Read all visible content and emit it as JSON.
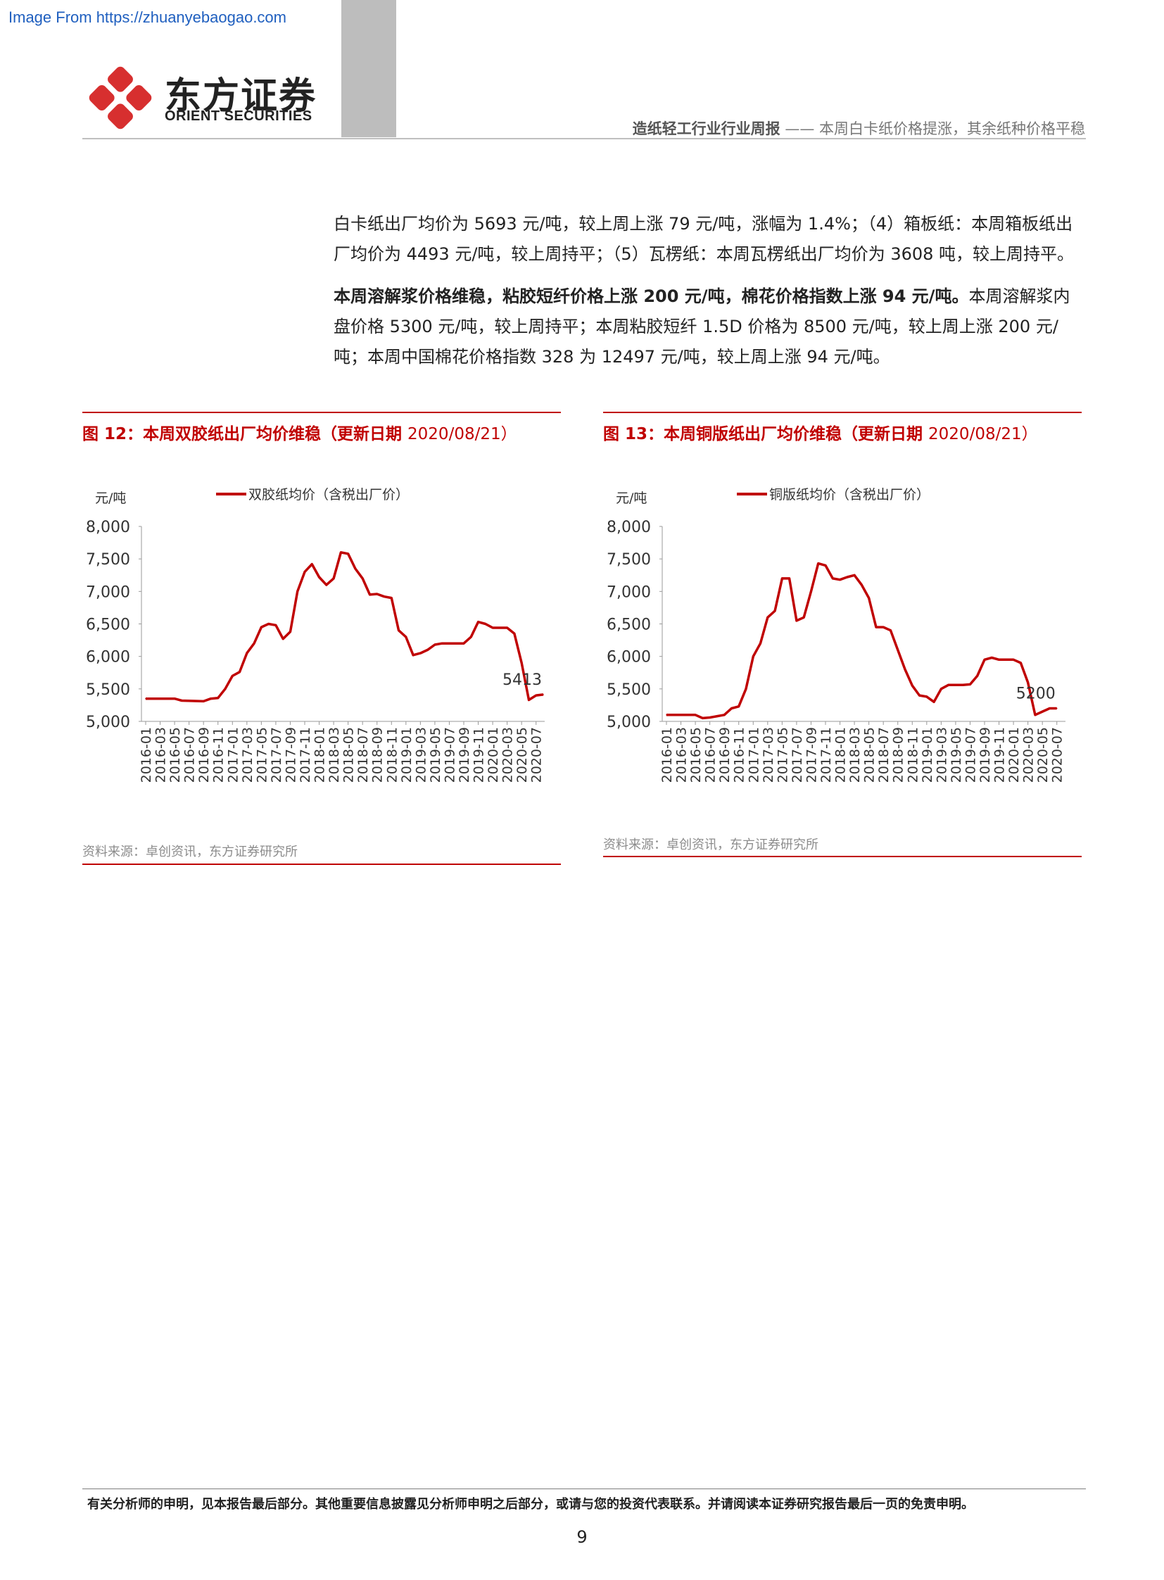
{
  "watermark": "Image From https://zhuanyebaogao.com",
  "logo": {
    "cn": "东方证券",
    "en": "ORIENT SECURITIES",
    "mark_color": "#d72f2f"
  },
  "header": {
    "report_type": "造纸轻工行业行业周报",
    "dash": " —— ",
    "headline": "本周白卡纸价格提涨，其余纸种价格平稳"
  },
  "body": {
    "p1": "白卡纸出厂均价为 5693 元/吨，较上周上涨 79 元/吨，涨幅为 1.4%；（4）箱板纸：本周箱板纸出厂均价为 4493 元/吨，较上周持平；（5）瓦楞纸：本周瓦楞纸出厂均价为 3608 吨，较上周持平。",
    "p2_lead": "本周溶解浆价格维稳，粘胶短纤价格上涨 200 元/吨，棉花价格指数上涨 94 元/吨。",
    "p2_rest": "本周溶解浆内盘价格 5300 元/吨，较上周持平；本周粘胶短纤 1.5D 价格为 8500 元/吨，较上周上涨 200 元/吨；本周中国棉花价格指数 328 为 12497 元/吨，较上周上涨 94 元/吨。"
  },
  "accent_color": "#c00000",
  "figures": [
    {
      "title": "图 12：本周双胶纸出厂均价维稳（更新日期 ",
      "title_tail": "2020/08/21）",
      "source": "资料来源：卓创资讯，东方证券研究所"
    },
    {
      "title": "图 13：本周铜版纸出厂均价维稳（更新日期 ",
      "title_tail": "2020/08/21）",
      "source": "资料来源：卓创资讯，东方证券研究所"
    }
  ],
  "footer": {
    "disclaimer": "有关分析师的申明，见本报告最后部分。其他重要信息披露见分析师申明之后部分，或请与您的投资代表联系。并请阅读本证券研究报告最后一页的免责申明。",
    "page": "9"
  },
  "chart_data": [
    {
      "type": "line",
      "unit_label": "元/吨",
      "ylim": [
        5000,
        8000
      ],
      "y_ticks": [
        "5,000",
        "5,500",
        "6,000",
        "6,500",
        "7,000",
        "7,500",
        "8,000"
      ],
      "x_ticks": [
        "2016-01",
        "2016-03",
        "2016-05",
        "2016-07",
        "2016-09",
        "2016-11",
        "2017-01",
        "2017-03",
        "2017-05",
        "2017-07",
        "2017-09",
        "2017-11",
        "2018-01",
        "2018-03",
        "2018-05",
        "2018-07",
        "2018-09",
        "2018-11",
        "2019-01",
        "2019-03",
        "2019-05",
        "2019-07",
        "2019-09",
        "2019-11",
        "2020-01",
        "2020-03",
        "2020-05",
        "2020-07"
      ],
      "series": [
        {
          "name": "双胶纸均价（含税出厂价）",
          "color": "#c00000",
          "points": [
            [
              "2016-01",
              5350
            ],
            [
              "2016-05",
              5350
            ],
            [
              "2016-06",
              5320
            ],
            [
              "2016-09",
              5310
            ],
            [
              "2016-10",
              5350
            ],
            [
              "2016-11",
              5360
            ],
            [
              "2016-12",
              5500
            ],
            [
              "2017-01",
              5700
            ],
            [
              "2017-02",
              5760
            ],
            [
              "2017-03",
              6050
            ],
            [
              "2017-04",
              6200
            ],
            [
              "2017-05",
              6450
            ],
            [
              "2017-06",
              6500
            ],
            [
              "2017-07",
              6480
            ],
            [
              "2017-08",
              6270
            ],
            [
              "2017-09",
              6380
            ],
            [
              "2017-10",
              7000
            ],
            [
              "2017-11",
              7300
            ],
            [
              "2017-12",
              7420
            ],
            [
              "2018-01",
              7220
            ],
            [
              "2018-02",
              7100
            ],
            [
              "2018-03",
              7200
            ],
            [
              "2018-04",
              7600
            ],
            [
              "2018-05",
              7580
            ],
            [
              "2018-06",
              7350
            ],
            [
              "2018-07",
              7200
            ],
            [
              "2018-08",
              6950
            ],
            [
              "2018-09",
              6960
            ],
            [
              "2018-10",
              6920
            ],
            [
              "2018-11",
              6900
            ],
            [
              "2018-12",
              6400
            ],
            [
              "2019-01",
              6300
            ],
            [
              "2019-02",
              6020
            ],
            [
              "2019-03",
              6050
            ],
            [
              "2019-04",
              6100
            ],
            [
              "2019-05",
              6180
            ],
            [
              "2019-06",
              6200
            ],
            [
              "2019-07",
              6200
            ],
            [
              "2019-08",
              6200
            ],
            [
              "2019-09",
              6200
            ],
            [
              "2019-10",
              6300
            ],
            [
              "2019-11",
              6530
            ],
            [
              "2019-12",
              6500
            ],
            [
              "2020-01",
              6440
            ],
            [
              "2020-02",
              6440
            ],
            [
              "2020-03",
              6440
            ],
            [
              "2020-04",
              6350
            ],
            [
              "2020-05",
              5900
            ],
            [
              "2020-06",
              5330
            ],
            [
              "2020-07",
              5400
            ],
            [
              "2020-08",
              5413
            ]
          ]
        }
      ],
      "annotation": {
        "label": "5413",
        "at": "2020-08",
        "value": 5413
      }
    },
    {
      "type": "line",
      "unit_label": "元/吨",
      "ylim": [
        5000,
        8000
      ],
      "y_ticks": [
        "5,000",
        "5,500",
        "6,000",
        "6,500",
        "7,000",
        "7,500",
        "8,000"
      ],
      "x_ticks": [
        "2016-01",
        "2016-03",
        "2016-05",
        "2016-07",
        "2016-09",
        "2016-11",
        "2017-01",
        "2017-03",
        "2017-05",
        "2017-07",
        "2017-09",
        "2017-11",
        "2018-01",
        "2018-03",
        "2018-05",
        "2018-07",
        "2018-09",
        "2018-11",
        "2019-01",
        "2019-03",
        "2019-05",
        "2019-07",
        "2019-09",
        "2019-11",
        "2020-01",
        "2020-03",
        "2020-05",
        "2020-07"
      ],
      "series": [
        {
          "name": "铜版纸均价（含税出厂价）",
          "color": "#c00000",
          "points": [
            [
              "2016-01",
              5100
            ],
            [
              "2016-05",
              5100
            ],
            [
              "2016-06",
              5050
            ],
            [
              "2016-07",
              5060
            ],
            [
              "2016-09",
              5100
            ],
            [
              "2016-10",
              5200
            ],
            [
              "2016-11",
              5230
            ],
            [
              "2016-12",
              5500
            ],
            [
              "2017-01",
              6000
            ],
            [
              "2017-02",
              6200
            ],
            [
              "2017-03",
              6600
            ],
            [
              "2017-04",
              6700
            ],
            [
              "2017-05",
              7200
            ],
            [
              "2017-06",
              7200
            ],
            [
              "2017-07",
              6550
            ],
            [
              "2017-08",
              6600
            ],
            [
              "2017-09",
              7000
            ],
            [
              "2017-10",
              7430
            ],
            [
              "2017-11",
              7400
            ],
            [
              "2017-12",
              7200
            ],
            [
              "2018-01",
              7180
            ],
            [
              "2018-02",
              7220
            ],
            [
              "2018-03",
              7250
            ],
            [
              "2018-04",
              7100
            ],
            [
              "2018-05",
              6900
            ],
            [
              "2018-06",
              6450
            ],
            [
              "2018-07",
              6450
            ],
            [
              "2018-08",
              6400
            ],
            [
              "2018-09",
              6100
            ],
            [
              "2018-10",
              5800
            ],
            [
              "2018-11",
              5550
            ],
            [
              "2018-12",
              5400
            ],
            [
              "2019-01",
              5380
            ],
            [
              "2019-02",
              5300
            ],
            [
              "2019-03",
              5500
            ],
            [
              "2019-04",
              5560
            ],
            [
              "2019-05",
              5560
            ],
            [
              "2019-06",
              5560
            ],
            [
              "2019-07",
              5570
            ],
            [
              "2019-08",
              5700
            ],
            [
              "2019-09",
              5950
            ],
            [
              "2019-10",
              5980
            ],
            [
              "2019-11",
              5950
            ],
            [
              "2019-12",
              5950
            ],
            [
              "2020-01",
              5950
            ],
            [
              "2020-02",
              5900
            ],
            [
              "2020-03",
              5600
            ],
            [
              "2020-04",
              5100
            ],
            [
              "2020-05",
              5150
            ],
            [
              "2020-06",
              5200
            ],
            [
              "2020-07",
              5200
            ]
          ]
        }
      ],
      "annotation": {
        "label": "5200",
        "at": "2020-07",
        "value": 5200
      }
    }
  ]
}
